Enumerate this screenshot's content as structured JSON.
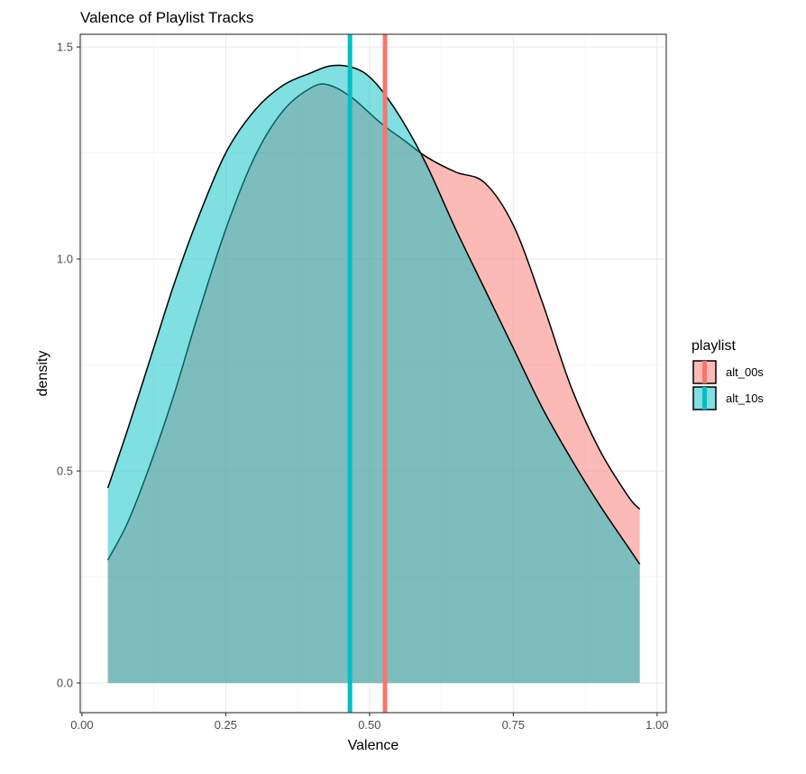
{
  "chart_data": {
    "type": "area",
    "title": "Valence of Playlist Tracks",
    "xlabel": "Valence",
    "ylabel": "density",
    "xlim": [
      -0.003,
      1.016
    ],
    "ylim": [
      -0.07,
      1.53
    ],
    "xticks": [
      0.0,
      0.25,
      0.5,
      0.75,
      1.0
    ],
    "xtick_labels": [
      "0.00",
      "0.25",
      "0.50",
      "0.75",
      "1.00"
    ],
    "yticks": [
      0.0,
      0.5,
      1.0,
      1.5
    ],
    "ytick_labels": [
      "0.0",
      "0.5",
      "1.0",
      "1.5"
    ],
    "grid": true,
    "legend": {
      "title": "playlist",
      "position": "right"
    },
    "series": [
      {
        "name": "alt_00s",
        "color": "#F8766D",
        "mean": 0.527,
        "x": [
          0.045,
          0.08,
          0.12,
          0.16,
          0.2,
          0.25,
          0.3,
          0.35,
          0.4,
          0.43,
          0.47,
          0.52,
          0.56,
          0.6,
          0.65,
          0.7,
          0.75,
          0.8,
          0.85,
          0.9,
          0.95,
          0.97
        ],
        "y": [
          0.29,
          0.38,
          0.52,
          0.68,
          0.86,
          1.07,
          1.24,
          1.35,
          1.405,
          1.41,
          1.38,
          1.32,
          1.28,
          1.24,
          1.205,
          1.18,
          1.08,
          0.9,
          0.7,
          0.55,
          0.44,
          0.41
        ]
      },
      {
        "name": "alt_10s",
        "color": "#00BFC4",
        "mean": 0.466,
        "x": [
          0.045,
          0.08,
          0.12,
          0.16,
          0.2,
          0.25,
          0.3,
          0.35,
          0.4,
          0.43,
          0.46,
          0.49,
          0.52,
          0.56,
          0.6,
          0.65,
          0.7,
          0.75,
          0.8,
          0.85,
          0.9,
          0.95,
          0.97
        ],
        "y": [
          0.46,
          0.6,
          0.77,
          0.94,
          1.09,
          1.25,
          1.35,
          1.41,
          1.44,
          1.455,
          1.455,
          1.44,
          1.4,
          1.32,
          1.22,
          1.07,
          0.93,
          0.79,
          0.65,
          0.53,
          0.42,
          0.32,
          0.28
        ]
      }
    ]
  }
}
